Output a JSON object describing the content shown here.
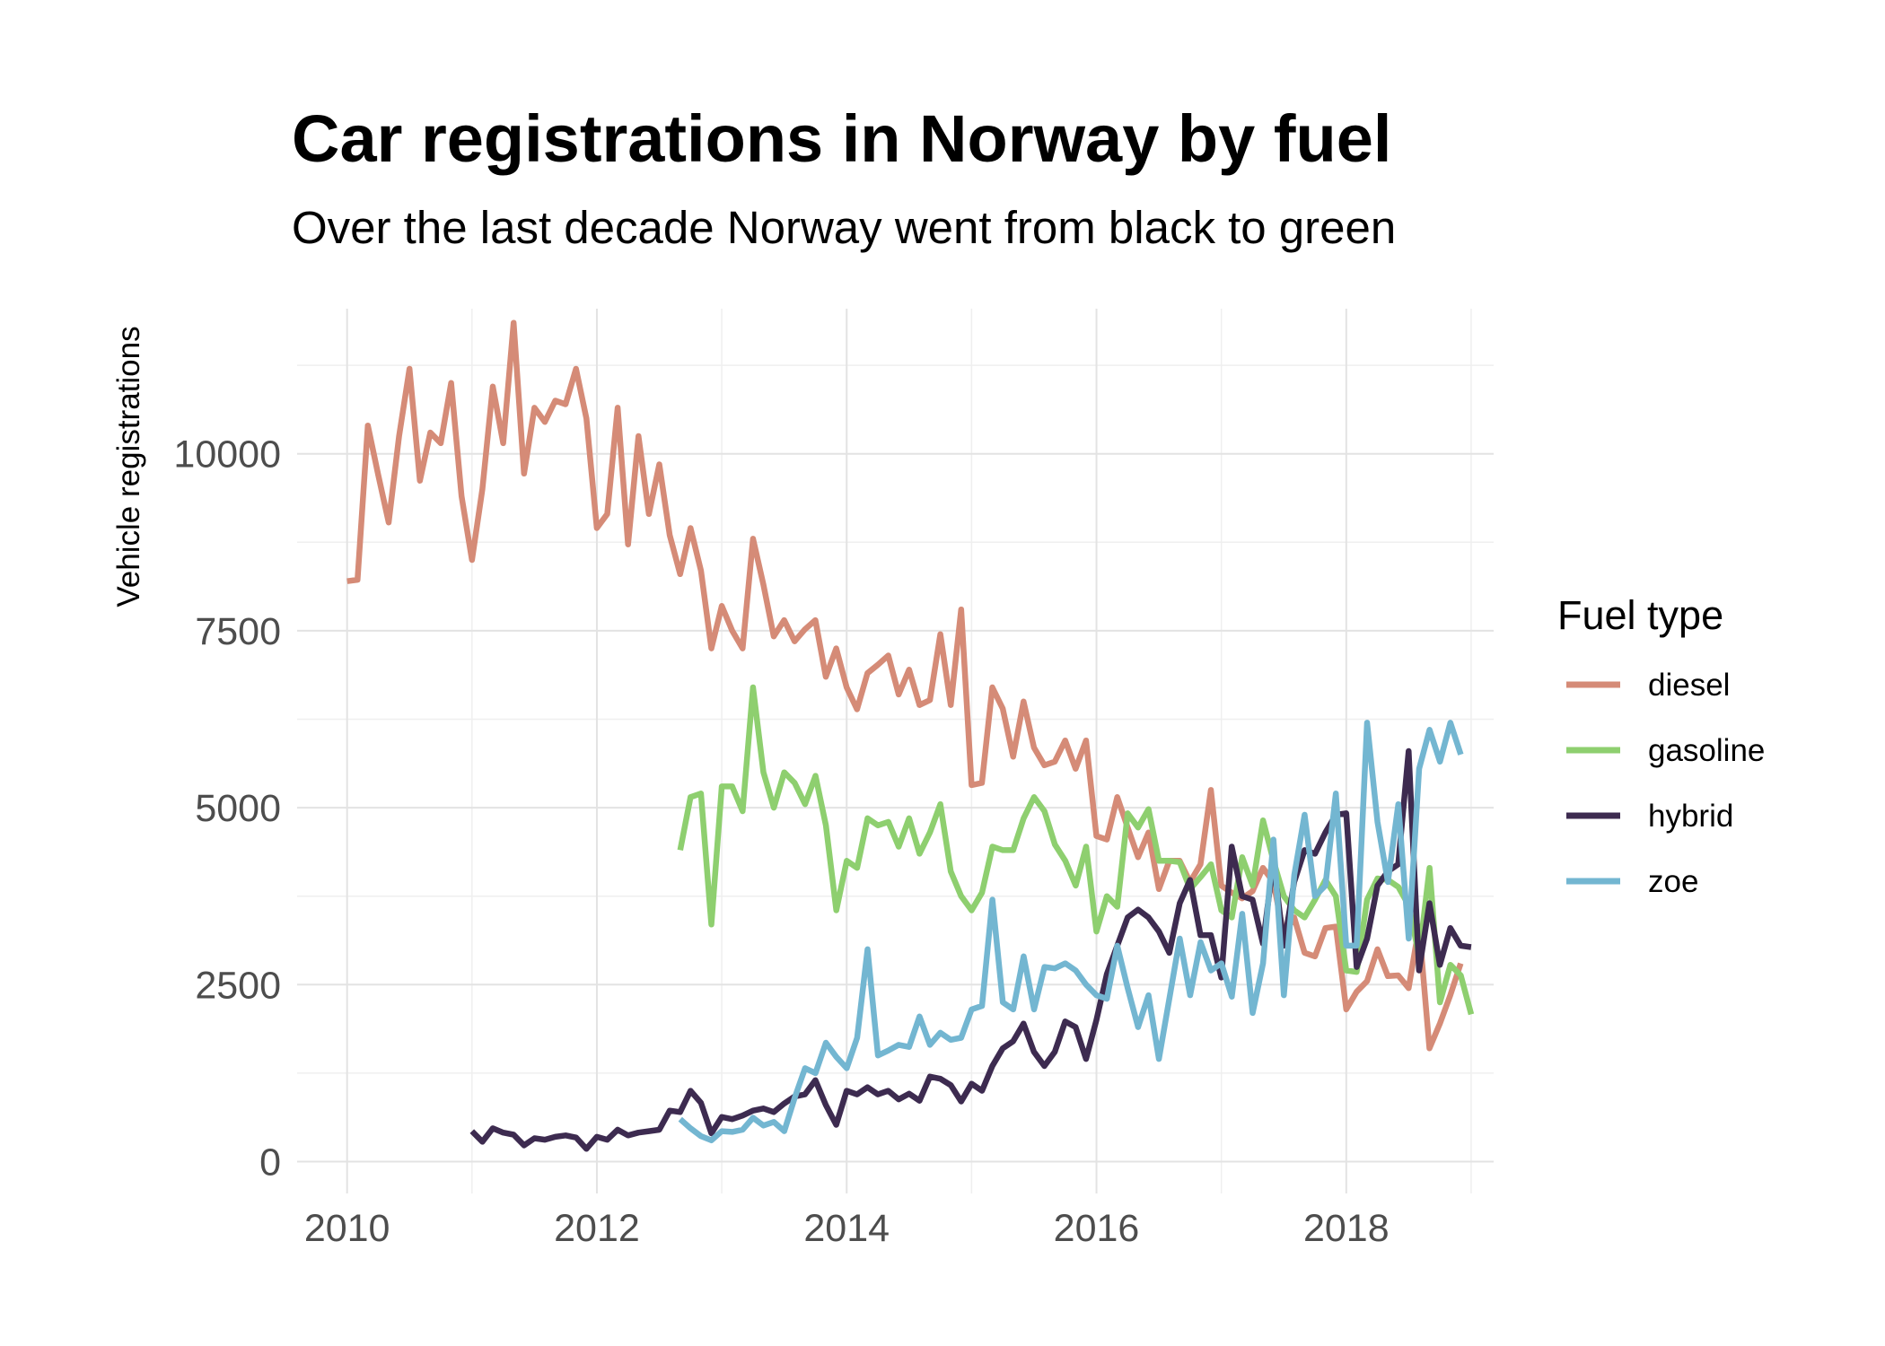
{
  "chart_data": {
    "type": "line",
    "title": "Car registrations in Norway by fuel",
    "subtitle": "Over the last decade Norway went from black to green",
    "xlabel": "",
    "ylabel": "Vehicle registrations",
    "xlim": [
      2009.6,
      2019.18
    ],
    "ylim": [
      -450,
      12050
    ],
    "x_ticks": [
      2010,
      2012,
      2014,
      2016,
      2018
    ],
    "y_ticks": [
      0,
      2500,
      5000,
      7500,
      10000
    ],
    "grid": true,
    "legend": {
      "title": "Fuel type",
      "position": "right"
    },
    "series": [
      {
        "name": "diesel",
        "color": "#d58b77",
        "x_start": 2010.0,
        "x_step": 0.08333,
        "values": [
          8200,
          8220,
          10400,
          9700,
          9030,
          10250,
          11200,
          9620,
          10300,
          10150,
          11000,
          9400,
          8500,
          9500,
          10950,
          10150,
          11850,
          9720,
          10650,
          10450,
          10750,
          10700,
          11200,
          10500,
          8950,
          9150,
          10650,
          8720,
          10250,
          9150,
          9850,
          8850,
          8300,
          8950,
          8350,
          7250,
          7850,
          7500,
          7250,
          8800,
          8150,
          7420,
          7650,
          7350,
          7520,
          7650,
          6850,
          7250,
          6700,
          6390,
          6900,
          7020,
          7150,
          6600,
          6950,
          6450,
          6520,
          7450,
          6450,
          7800,
          5320,
          5350,
          6700,
          6400,
          5720,
          6500,
          5850,
          5600,
          5650,
          5950,
          5550,
          5950,
          4600,
          4550,
          5150,
          4720,
          4300,
          4650,
          3850,
          4250,
          4250,
          3950,
          4200,
          5250,
          3900,
          3800,
          3720,
          3820,
          4150,
          3950,
          3200,
          3450,
          2950,
          2900,
          3300,
          3320,
          2150,
          2400,
          2550,
          3000,
          2620,
          2630,
          2450,
          3320,
          1600,
          1950,
          2350,
          2800
        ]
      },
      {
        "name": "gasoline",
        "color": "#8ecf6f",
        "x_start": 2012.667,
        "x_step": 0.08333,
        "values": [
          4400,
          5150,
          5200,
          3350,
          5300,
          5300,
          4950,
          6700,
          5500,
          5000,
          5500,
          5350,
          5050,
          5450,
          4750,
          3550,
          4250,
          4150,
          4850,
          4750,
          4800,
          4450,
          4850,
          4350,
          4650,
          5050,
          4100,
          3750,
          3550,
          3800,
          4450,
          4400,
          4400,
          4850,
          5150,
          4950,
          4480,
          4250,
          3900,
          4450,
          3250,
          3750,
          3600,
          4920,
          4720,
          4980,
          4250,
          4250,
          4230,
          3850,
          4020,
          4200,
          3550,
          3450,
          4300,
          3900,
          4820,
          4250,
          3750,
          3550,
          3450,
          3700,
          3980,
          3750,
          2700,
          2680,
          3700,
          4000,
          3980,
          3880,
          3620,
          2900,
          4150,
          2250,
          2780,
          2630,
          2080
        ]
      },
      {
        "name": "hybrid",
        "color": "#3d2b50",
        "x_start": 2011.0,
        "x_step": 0.08333,
        "values": [
          430,
          280,
          470,
          410,
          380,
          230,
          330,
          310,
          350,
          370,
          340,
          180,
          350,
          310,
          450,
          370,
          410,
          430,
          450,
          720,
          700,
          1000,
          830,
          400,
          630,
          600,
          650,
          720,
          750,
          700,
          820,
          920,
          950,
          1150,
          800,
          520,
          1000,
          950,
          1050,
          950,
          1000,
          880,
          960,
          860,
          1200,
          1170,
          1080,
          850,
          1100,
          1000,
          1350,
          1600,
          1700,
          1950,
          1550,
          1350,
          1550,
          1980,
          1900,
          1450,
          2000,
          2650,
          3050,
          3450,
          3560,
          3450,
          3250,
          2950,
          3650,
          3980,
          3200,
          3200,
          2600,
          4450,
          3750,
          3700,
          3080,
          4250,
          3050,
          3950,
          4400,
          4350,
          4650,
          4900,
          4920,
          2750,
          3150,
          3900,
          4100,
          4200,
          5800,
          2700,
          3650,
          2780,
          3300,
          3050,
          3030
        ]
      },
      {
        "name": "zoe",
        "color": "#73b6d1",
        "x_start": 2012.667,
        "x_step": 0.08333,
        "values": [
          600,
          470,
          360,
          300,
          430,
          420,
          450,
          620,
          510,
          560,
          430,
          900,
          1320,
          1250,
          1680,
          1480,
          1320,
          1750,
          3000,
          1500,
          1570,
          1650,
          1620,
          2050,
          1650,
          1820,
          1720,
          1750,
          2150,
          2200,
          3700,
          2250,
          2150,
          2900,
          2150,
          2750,
          2730,
          2800,
          2700,
          2500,
          2350,
          2300,
          3050,
          2450,
          1900,
          2350,
          1450,
          2300,
          3150,
          2350,
          3100,
          2700,
          2800,
          2330,
          3500,
          2100,
          2800,
          4550,
          2350,
          4050,
          4900,
          3750,
          3900,
          5200,
          3050,
          3050,
          6200,
          4800,
          3950,
          5050,
          3150,
          5550,
          6100,
          5650,
          6200,
          5750
        ]
      }
    ]
  }
}
